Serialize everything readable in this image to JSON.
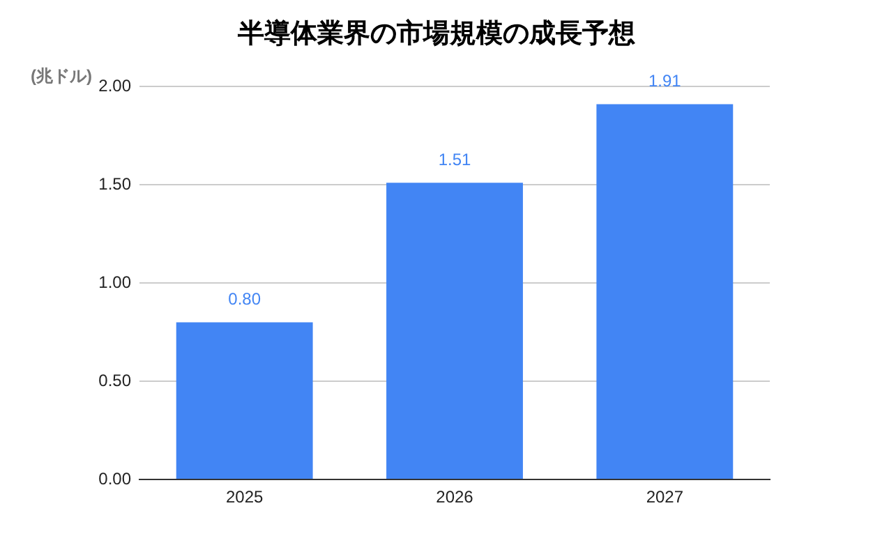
{
  "chart_data": {
    "type": "bar",
    "title": "半導体業界の市場規模の成長予想",
    "ylabel": "(兆ドル)",
    "categories": [
      "2025",
      "2026",
      "2027"
    ],
    "values": [
      0.8,
      1.51,
      1.91
    ],
    "color": "#4285f4",
    "value_labels": [
      "0.80",
      "1.51",
      "1.91"
    ],
    "ylim": [
      0,
      2
    ],
    "yticks": [
      {
        "value": 0,
        "label": "0.00"
      },
      {
        "value": 0.5,
        "label": "0.50"
      },
      {
        "value": 1,
        "label": "1.00"
      },
      {
        "value": 1.5,
        "label": "1.50"
      },
      {
        "value": 2,
        "label": "2.00"
      }
    ],
    "grid": "y",
    "legend": false
  }
}
